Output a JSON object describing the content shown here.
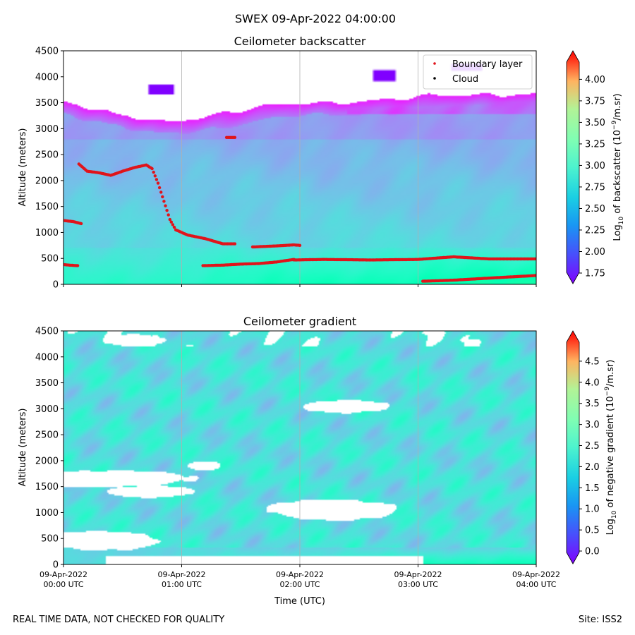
{
  "suptitle": "SWEX 09-Apr-2022 04:00:00",
  "footer_left": "REAL TIME DATA, NOT CHECKED FOR QUALITY",
  "footer_right": "Site: ISS2",
  "colors": {
    "boundary": "#e0141b",
    "cloud": "#000000",
    "grid": "#b0b0b0"
  },
  "chart_data": [
    {
      "type": "heatmap",
      "title": "Ceilometer backscatter",
      "ylabel": "Altitude (meters)",
      "xlim_hours": [
        0,
        4
      ],
      "ylim": [
        0,
        4500
      ],
      "yticks": [
        "0",
        "500",
        "1000",
        "1500",
        "2000",
        "2500",
        "3000",
        "3500",
        "4000",
        "4500"
      ],
      "grid": "vertical",
      "legend": {
        "placement": "top-right",
        "entries": [
          "Boundary layer",
          "Cloud"
        ]
      },
      "colorbar": {
        "label": "Log10 of backscatter (10^-9/m.sr)",
        "label_parts": {
          "a": "Log",
          "b": "10",
          "c": " of backscatter (10",
          "d": "−9",
          "e": "/m.sr)"
        },
        "range": [
          1.75,
          4.2
        ],
        "ticks": [
          "1.75",
          "2.00",
          "2.25",
          "2.50",
          "2.75",
          "3.00",
          "3.25",
          "3.50",
          "3.75",
          "4.00"
        ]
      },
      "field_description": {
        "cloud_top_m": [
          [
            0,
            3500
          ],
          [
            0.4,
            3300
          ],
          [
            0.8,
            3150
          ],
          [
            1.2,
            3250
          ],
          [
            2.0,
            3500
          ],
          [
            3.0,
            3600
          ],
          [
            4.0,
            3700
          ]
        ],
        "near_surface_max": 3.05,
        "mid_level_value": 2.55
      },
      "series": [
        {
          "name": "Boundary layer",
          "segments": [
            [
              [
                0.0,
                1230
              ],
              [
                0.08,
                1210
              ],
              [
                0.15,
                1170
              ]
            ],
            [
              [
                0.0,
                380
              ],
              [
                0.05,
                370
              ],
              [
                0.12,
                360
              ]
            ],
            [
              [
                0.13,
                2320
              ],
              [
                0.2,
                2180
              ],
              [
                0.3,
                2150
              ],
              [
                0.4,
                2100
              ],
              [
                0.5,
                2180
              ],
              [
                0.6,
                2250
              ],
              [
                0.7,
                2300
              ],
              [
                0.75,
                2230
              ],
              [
                0.8,
                1950
              ],
              [
                0.85,
                1600
              ],
              [
                0.9,
                1250
              ],
              [
                0.95,
                1050
              ],
              [
                1.05,
                950
              ],
              [
                1.2,
                880
              ],
              [
                1.35,
                780
              ],
              [
                1.45,
                780
              ]
            ],
            [
              [
                1.18,
                360
              ],
              [
                1.35,
                370
              ],
              [
                1.5,
                390
              ],
              [
                1.65,
                400
              ],
              [
                1.8,
                430
              ],
              [
                1.95,
                480
              ]
            ],
            [
              [
                1.6,
                720
              ],
              [
                1.8,
                740
              ],
              [
                1.95,
                760
              ],
              [
                2.0,
                750
              ]
            ],
            [
              [
                1.95,
                470
              ],
              [
                2.2,
                480
              ],
              [
                2.6,
                470
              ],
              [
                3.0,
                480
              ],
              [
                3.3,
                530
              ],
              [
                3.6,
                490
              ],
              [
                4.0,
                490
              ]
            ],
            [
              [
                1.38,
                2830
              ],
              [
                1.45,
                2830
              ]
            ],
            [
              [
                3.04,
                60
              ],
              [
                3.3,
                80
              ],
              [
                3.6,
                120
              ],
              [
                4.0,
                170
              ]
            ]
          ]
        }
      ]
    },
    {
      "type": "heatmap",
      "title": "Ceilometer gradient",
      "xlabel": "Time (UTC)",
      "ylabel": "Altitude (meters)",
      "xlim_hours": [
        0,
        4
      ],
      "ylim": [
        0,
        4500
      ],
      "xticks": [
        "09-Apr-2022\n00:00 UTC",
        "09-Apr-2022\n01:00 UTC",
        "09-Apr-2022\n02:00 UTC",
        "09-Apr-2022\n03:00 UTC",
        "09-Apr-2022\n04:00 UTC"
      ],
      "yticks": [
        "0",
        "500",
        "1000",
        "1500",
        "2000",
        "2500",
        "3000",
        "3500",
        "4000",
        "4500"
      ],
      "grid": "vertical",
      "colorbar": {
        "label": "Log10 of negative gradient (10^-9/m.sr)",
        "label_parts": {
          "a": "Log",
          "b": "10",
          "c": " of negative gradient (10",
          "d": "−9",
          "e": "/m.sr)"
        },
        "range": [
          -0.05,
          4.95
        ],
        "ticks": [
          "0.0",
          "0.5",
          "1.0",
          "1.5",
          "2.0",
          "2.5",
          "3.0",
          "3.5",
          "4.0",
          "4.5"
        ]
      },
      "field_description": {
        "typical_value": 1.7,
        "white_gaps_hours_m": [
          [
            0.6,
            4330,
            0.25,
            120
          ],
          [
            0.35,
            1650,
            0.7,
            160
          ],
          [
            0.75,
            1400,
            0.35,
            120
          ],
          [
            2.3,
            1050,
            0.55,
            200
          ],
          [
            0.3,
            450,
            0.55,
            180
          ],
          [
            2.4,
            3050,
            0.35,
            130
          ],
          [
            1.2,
            1900,
            0.15,
            90
          ]
        ]
      }
    }
  ]
}
